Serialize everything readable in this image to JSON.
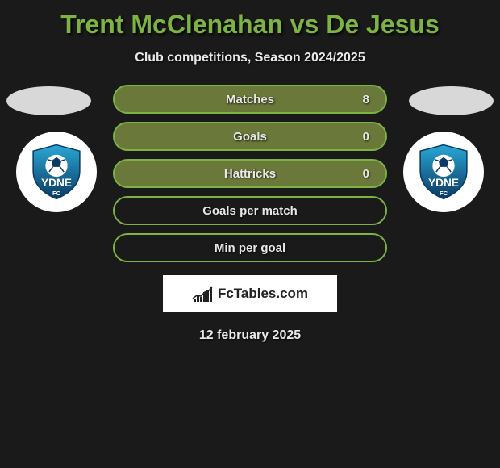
{
  "title": "Trent McClenahan vs De Jesus",
  "subtitle": "Club competitions, Season 2024/2025",
  "date": "12 february 2025",
  "brand": "FcTables.com",
  "background_color": "#1a1a1a",
  "accent_color": "#7cb342",
  "text_color": "#e8e8e8",
  "row_light_bg": "#6a783a",
  "badge_bg": "#ffffff",
  "ellipse_color": "#d8d8d8",
  "team_badge": {
    "text": "YDNE",
    "subtext": "FC",
    "shield_top": "#2aa8d6",
    "shield_bottom": "#0b3a62",
    "ball_fill": "#ffffff",
    "ball_lines": "#0b3a62"
  },
  "stats": [
    {
      "label": "Matches",
      "value_right": "8",
      "variant": "light"
    },
    {
      "label": "Goals",
      "value_right": "0",
      "variant": "light"
    },
    {
      "label": "Hattricks",
      "value_right": "0",
      "variant": "light"
    },
    {
      "label": "Goals per match",
      "value_right": "",
      "variant": "dark"
    },
    {
      "label": "Min per goal",
      "value_right": "",
      "variant": "dark"
    }
  ],
  "brand_icon_bars": [
    4,
    8,
    6,
    12,
    14,
    18
  ]
}
